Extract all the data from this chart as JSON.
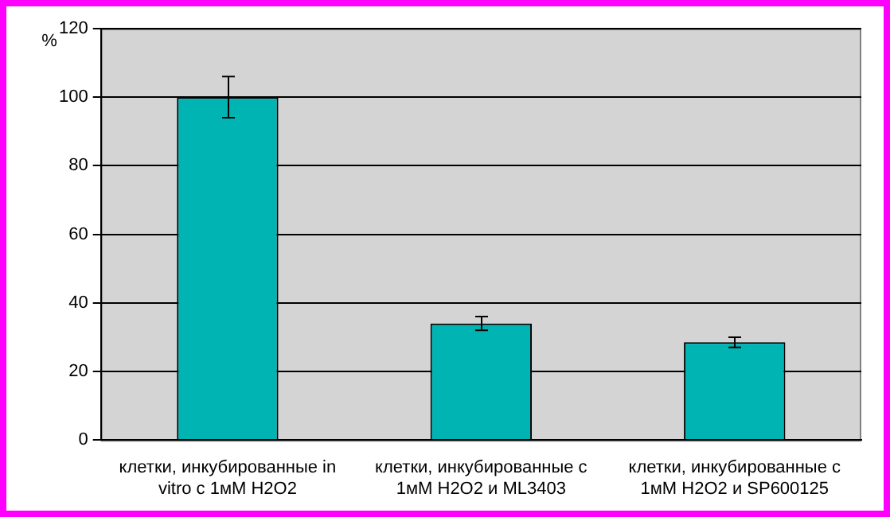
{
  "chart_data": {
    "type": "bar",
    "ylabel": "%",
    "categories": [
      "клетки, инкубированные in vitro с 1мМ H2O2",
      "клетки, инкубированные с 1мМ H2O2 и ML3403",
      "клетки, инкубированные с 1мМ H2O2 и SP600125"
    ],
    "values": [
      100,
      34,
      28.5
    ],
    "errors": [
      6,
      2,
      1.5
    ],
    "color": "#00b4b4",
    "ylim": [
      0,
      120
    ],
    "yticks": [
      0,
      20,
      40,
      60,
      80,
      100,
      120
    ],
    "grid": "y",
    "legend": false
  }
}
